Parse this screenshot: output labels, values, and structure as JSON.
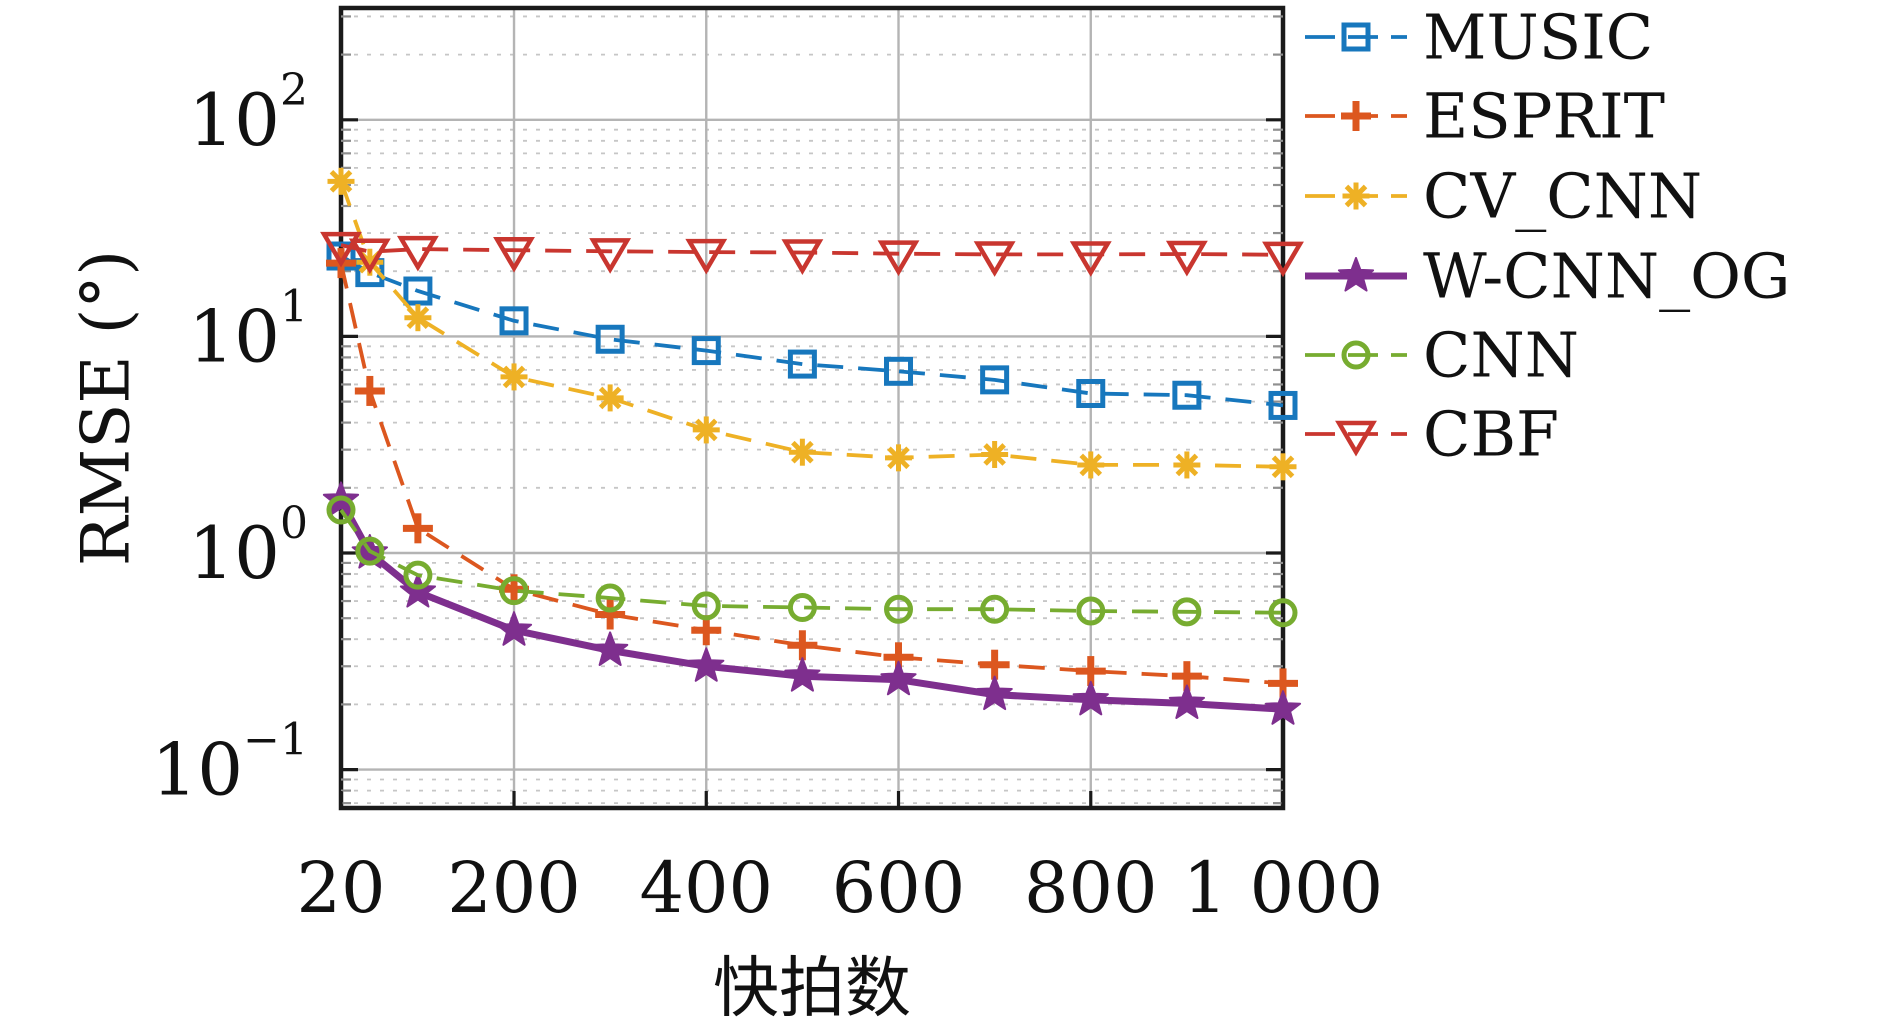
{
  "figure": {
    "background": "#ffffff",
    "text_color": "#111111"
  },
  "chart_data": {
    "type": "line",
    "title": "",
    "xlabel": "快拍数",
    "ylabel": "RMSE (°)",
    "x_axis": {
      "scale": "linear",
      "min": 20,
      "max": 1000,
      "ticks": [
        20,
        200,
        400,
        600,
        800,
        1000
      ],
      "tick_labels": [
        "20",
        "200",
        "400",
        "600",
        "800",
        "1 000"
      ],
      "gridlines": [
        200,
        400,
        600,
        800
      ],
      "grid": "on"
    },
    "y_axis": {
      "scale": "log",
      "min": 0.066,
      "max": 330,
      "ticks": [
        100,
        10,
        1,
        0.1
      ],
      "tick_labels": [
        {
          "base": "10",
          "exp": "2"
        },
        {
          "base": "10",
          "exp": "1"
        },
        {
          "base": "10",
          "exp": "0"
        },
        {
          "base": "10",
          "exp": "−1"
        }
      ],
      "minor_grid": "on",
      "grid": "on"
    },
    "x": [
      20,
      50,
      100,
      200,
      300,
      400,
      500,
      600,
      700,
      800,
      900,
      1000
    ],
    "series": [
      {
        "name": "MUSIC",
        "color": "#1777bd",
        "line": "dashed",
        "marker": "square",
        "values": [
          23.5,
          19.7,
          16.2,
          11.8,
          9.7,
          8.6,
          7.45,
          6.9,
          6.3,
          5.45,
          5.35,
          4.8
        ]
      },
      {
        "name": "ESPRIT",
        "color": "#dc571f",
        "line": "dashed",
        "marker": "plus",
        "values": [
          21.8,
          5.6,
          1.3,
          0.68,
          0.52,
          0.44,
          0.375,
          0.33,
          0.305,
          0.285,
          0.27,
          0.25
        ]
      },
      {
        "name": "CV_CNN",
        "color": "#eeb125",
        "line": "dashed",
        "marker": "asterisk",
        "values": [
          52,
          22,
          12.2,
          6.5,
          5.2,
          3.7,
          2.92,
          2.75,
          2.85,
          2.55,
          2.55,
          2.5
        ]
      },
      {
        "name": "W-CNN_OG",
        "color": "#7e2f8e",
        "line": "solid",
        "marker": "star",
        "values": [
          1.75,
          1.0,
          0.66,
          0.44,
          0.355,
          0.3,
          0.27,
          0.26,
          0.222,
          0.21,
          0.202,
          0.19
        ]
      },
      {
        "name": "CNN",
        "color": "#77ac30",
        "line": "dashed",
        "marker": "circle",
        "values": [
          1.58,
          1.02,
          0.79,
          0.67,
          0.62,
          0.57,
          0.56,
          0.55,
          0.55,
          0.54,
          0.535,
          0.53
        ]
      },
      {
        "name": "CBF",
        "color": "#c9362f",
        "line": "dashed",
        "marker": "triangle-down",
        "values": [
          26.4,
          24.6,
          25.3,
          25.0,
          24.7,
          24.5,
          24.4,
          24.1,
          23.9,
          23.9,
          24.0,
          23.8
        ]
      }
    ],
    "legend": {
      "position": "right-top",
      "border": "none",
      "entries": [
        "MUSIC",
        "ESPRIT",
        "CV_CNN",
        "W-CNN_OG",
        "CNN",
        "CBF"
      ]
    },
    "style": {
      "box_color": "#1a1a1a",
      "major_grid_color": "#b4b4b4",
      "minor_grid_color": "#c6c6c6",
      "minor_tick_color": "#8f8f8f"
    }
  }
}
